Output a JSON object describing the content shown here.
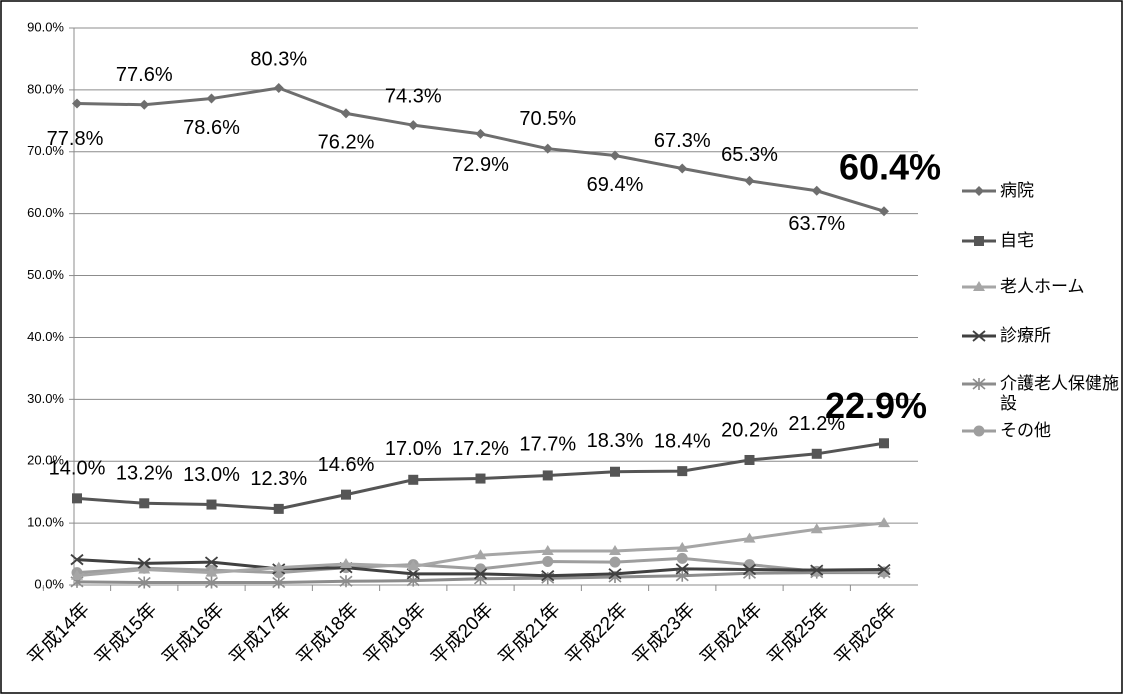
{
  "chart_data": {
    "type": "line",
    "categories": [
      "平成14年",
      "平成15年",
      "平成16年",
      "平成17年",
      "平成18年",
      "平成19年",
      "平成20年",
      "平成21年",
      "平成22年",
      "平成23年",
      "平成24年",
      "平成25年",
      "平成26年"
    ],
    "ylim": [
      0,
      90
    ],
    "yticks": [
      {
        "value": 0,
        "label": "0.0%"
      },
      {
        "value": 10,
        "label": "10.0%"
      },
      {
        "value": 20,
        "label": "20.0%"
      },
      {
        "value": 30,
        "label": "30.0%"
      },
      {
        "value": 40,
        "label": "40.0%"
      },
      {
        "value": 50,
        "label": "50.0%"
      },
      {
        "value": 60,
        "label": "60.0%"
      },
      {
        "value": 70,
        "label": "70.0%"
      },
      {
        "value": 80,
        "label": "80.0%"
      },
      {
        "value": 90,
        "label": "90.0%"
      }
    ],
    "grid": true,
    "legend": "right",
    "series": [
      {
        "name": "病院",
        "color": "#6e6e6e",
        "marker": "diamond",
        "values": [
          77.8,
          77.6,
          78.6,
          80.3,
          76.2,
          74.3,
          72.9,
          70.5,
          69.4,
          67.3,
          65.3,
          63.7,
          60.4
        ],
        "value_labels": [
          "77.8%",
          "77.6%",
          "78.6%",
          "80.3%",
          "76.2%",
          "74.3%",
          "72.9%",
          "70.5%",
          "69.4%",
          "67.3%",
          "65.3%",
          "63.7%",
          "60.4%"
        ]
      },
      {
        "name": "自宅",
        "color": "#555555",
        "marker": "square",
        "values": [
          14.0,
          13.2,
          13.0,
          12.3,
          14.6,
          17.0,
          17.2,
          17.7,
          18.3,
          18.4,
          20.2,
          21.2,
          22.9
        ],
        "value_labels": [
          "14.0%",
          "13.2%",
          "13.0%",
          "12.3%",
          "14.6%",
          "17.0%",
          "17.2%",
          "17.7%",
          "18.3%",
          "18.4%",
          "20.2%",
          "21.2%",
          "22.9%"
        ]
      },
      {
        "name": "老人ホーム",
        "color": "#a6a6a6",
        "marker": "triangle",
        "values": [
          1.5,
          2.5,
          2.0,
          2.8,
          3.4,
          3.0,
          4.8,
          5.5,
          5.5,
          6.0,
          7.5,
          9.0,
          10.0
        ]
      },
      {
        "name": "診療所",
        "color": "#404040",
        "marker": "x",
        "values": [
          4.1,
          3.5,
          3.7,
          2.6,
          2.8,
          1.8,
          1.8,
          1.5,
          1.8,
          2.6,
          2.5,
          2.4,
          2.5
        ]
      },
      {
        "name": "介護老人保健施設",
        "color": "#8c8c8c",
        "marker": "star",
        "values": [
          0.5,
          0.4,
          0.4,
          0.4,
          0.6,
          0.7,
          1.0,
          1.1,
          1.3,
          1.5,
          1.9,
          2.0,
          2.0
        ]
      },
      {
        "name": "その他",
        "color": "#9e9e9e",
        "marker": "circle",
        "values": [
          2.0,
          2.7,
          2.4,
          2.0,
          2.8,
          3.3,
          2.6,
          3.8,
          3.7,
          4.3,
          3.3,
          2.2,
          2.1
        ]
      }
    ]
  }
}
